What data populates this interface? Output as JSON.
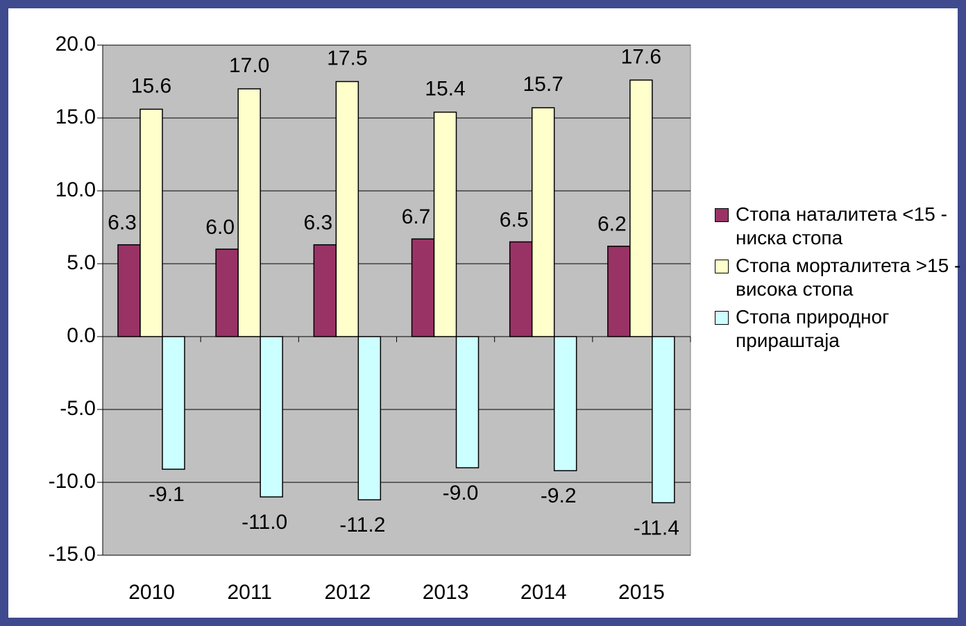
{
  "chart_data": {
    "type": "bar",
    "categories": [
      "2010",
      "2011",
      "2012",
      "2013",
      "2014",
      "2015"
    ],
    "series": [
      {
        "name": "Стопа наталитета <15 - ниска стопа",
        "color": "#993366",
        "values": [
          6.3,
          6.0,
          6.3,
          6.7,
          6.5,
          6.2
        ],
        "value_labels": [
          "6.3",
          "6.0",
          "6.3",
          "6.7",
          "6.5",
          "6.2"
        ]
      },
      {
        "name": "Стопа морталитета >15 - висока стопа",
        "color": "#ffffcc",
        "values": [
          15.6,
          17.0,
          17.5,
          15.4,
          15.7,
          17.6
        ],
        "value_labels": [
          "15.6",
          "17.0",
          "17.5",
          "15.4",
          "15.7",
          "17.6"
        ]
      },
      {
        "name": "Стопа природног прираштаја",
        "color": "#ccffff",
        "values": [
          -9.1,
          -11.0,
          -11.2,
          -9.0,
          -9.2,
          -11.4
        ],
        "value_labels": [
          "-9.1",
          "-11.0",
          "-11.2",
          "-9.0",
          "-9.2",
          "-11.4"
        ]
      }
    ],
    "ylim": [
      -15,
      20
    ],
    "yticks": [
      {
        "value": -15,
        "label": "-15.0"
      },
      {
        "value": -10,
        "label": "-10.0"
      },
      {
        "value": -5,
        "label": "-5.0"
      },
      {
        "value": 0,
        "label": "0.0"
      },
      {
        "value": 5,
        "label": "5.0"
      },
      {
        "value": 10,
        "label": "10.0"
      },
      {
        "value": 15,
        "label": "15.0"
      },
      {
        "value": 20,
        "label": "20.0"
      }
    ],
    "grid": true,
    "legend": "right"
  }
}
